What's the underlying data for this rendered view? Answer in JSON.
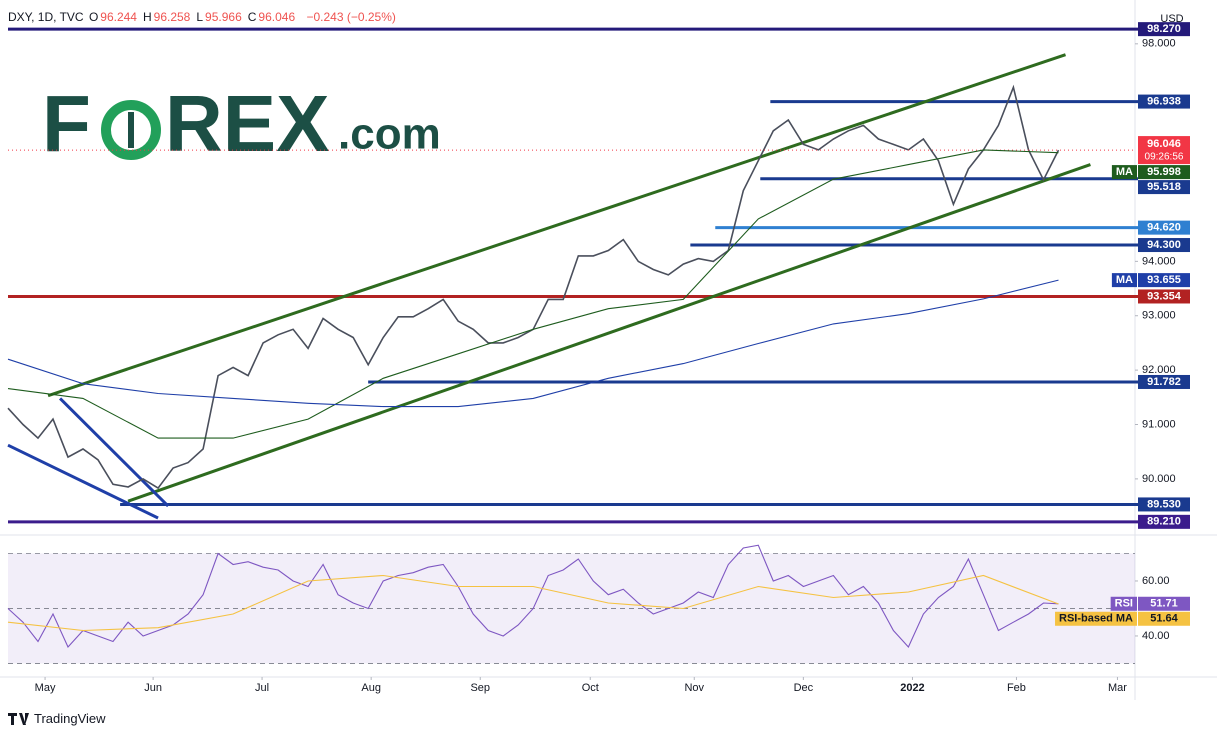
{
  "header": {
    "symbol": "DXY, 1D, TVC",
    "ohlc": [
      {
        "key": "O",
        "value": 96.244
      },
      {
        "key": "H",
        "value": 96.258
      },
      {
        "key": "L",
        "value": 95.966
      },
      {
        "key": "C",
        "value": 96.046
      }
    ],
    "change": "−0.243 (−0.25%)"
  },
  "logo": {
    "left": "F",
    "right": "REX",
    "suffix": ".com"
  },
  "footer": "TradingView",
  "chart_data": [
    {
      "type": "line",
      "currency": "USD",
      "timer": "09:26:56",
      "xlim": [
        0,
        75.1
      ],
      "ylim": [
        89.06,
        98.53
      ],
      "yticks": [
        {
          "value": 90,
          "label": "90.000"
        },
        {
          "value": 91,
          "label": "91.000"
        },
        {
          "value": 92,
          "label": "92.000"
        },
        {
          "value": 93,
          "label": "93.000"
        },
        {
          "value": 94,
          "label": "94.000"
        },
        {
          "value": 98,
          "label": "98.000"
        }
      ],
      "series": [
        {
          "color": "#4a4f5c",
          "values": [
            91.3,
            91.0,
            90.75,
            91.1,
            90.4,
            90.55,
            90.35,
            89.9,
            89.85,
            90.0,
            89.83,
            90.2,
            90.3,
            90.55,
            91.9,
            92.05,
            91.9,
            92.5,
            92.65,
            92.75,
            92.4,
            92.95,
            92.75,
            92.6,
            92.1,
            92.6,
            92.98,
            92.98,
            93.13,
            93.3,
            92.9,
            92.75,
            92.5,
            92.5,
            92.6,
            92.75,
            93.3,
            93.3,
            94.1,
            94.1,
            94.2,
            94.4,
            94.0,
            93.85,
            93.75,
            93.95,
            94.05,
            94.0,
            94.2,
            95.3,
            95.85,
            96.4,
            96.6,
            96.15,
            96.05,
            96.25,
            96.4,
            96.5,
            96.25,
            96.15,
            96.05,
            96.25,
            95.85,
            95.05,
            95.7,
            96.05,
            96.5,
            97.2,
            96.05,
            95.5,
            96.046
          ]
        },
        {
          "name": "MA",
          "color": "#1e5c1e",
          "x": [
            0,
            5,
            10,
            15,
            20,
            25,
            30,
            35,
            40,
            45,
            50,
            55,
            60,
            65,
            70
          ],
          "values": [
            91.66,
            91.48,
            90.75,
            90.75,
            91.1,
            91.85,
            92.3,
            92.75,
            93.13,
            93.3,
            94.78,
            95.51,
            95.78,
            96.05,
            95.998
          ]
        },
        {
          "name": "MA",
          "color": "#1f3fa8",
          "x": [
            0,
            5,
            10,
            15,
            20,
            25,
            30,
            35,
            40,
            45,
            50,
            55,
            60,
            65,
            70
          ],
          "values": [
            92.2,
            91.75,
            91.57,
            91.48,
            91.39,
            91.33,
            91.33,
            91.48,
            91.85,
            92.12,
            92.49,
            92.85,
            93.04,
            93.31,
            93.655
          ]
        }
      ],
      "last_color": "#f23645",
      "levels": [
        {
          "value": 98.27,
          "label": "98.270",
          "color": "#241a7a",
          "x_start": 0
        },
        {
          "value": 96.938,
          "label": "96.938",
          "color": "#1a3a8f",
          "x_start": 50.8
        },
        {
          "value": 95.518,
          "label": "95.518",
          "color": "#1a3a8f",
          "x_start": 50.13
        },
        {
          "value": 94.62,
          "label": "94.620",
          "color": "#2f80d1",
          "x_start": 47.13
        },
        {
          "value": 94.3,
          "label": "94.300",
          "color": "#1a3a8f",
          "x_start": 45.47
        },
        {
          "value": 93.354,
          "label": "93.354",
          "color": "#b22222",
          "x_start": 0
        },
        {
          "value": 91.782,
          "label": "91.782",
          "color": "#1a3a8f",
          "x_start": 24
        },
        {
          "value": 89.53,
          "label": "89.530",
          "color": "#1a3a8f",
          "x_start": 7.47
        },
        {
          "value": 89.21,
          "label": "89.210",
          "color": "#3b1c8c",
          "x_start": 0
        }
      ],
      "trendlines": [
        {
          "color": "#2e6b1f",
          "x": [
            2.67,
            70.47
          ],
          "values": [
            91.53,
            97.8
          ]
        },
        {
          "color": "#2e6b1f",
          "x": [
            8,
            72.13
          ],
          "values": [
            89.59,
            95.78
          ]
        },
        {
          "color": "#1f3fa8",
          "x": [
            0,
            10
          ],
          "values": [
            90.62,
            89.28
          ]
        },
        {
          "color": "#1f3fa8",
          "x": [
            3.47,
            10.67
          ],
          "values": [
            91.48,
            89.5
          ]
        }
      ]
    },
    {
      "type": "line",
      "xlim": [
        0,
        75.1
      ],
      "ylim": [
        25.8,
        74.9
      ],
      "yticks": [
        {
          "value": 40,
          "label": "40.00"
        },
        {
          "value": 60,
          "label": "60.00"
        }
      ],
      "bands": [
        70,
        50,
        30
      ],
      "xticks": [
        {
          "value": 2.47,
          "label": "May"
        },
        {
          "value": 9.67,
          "label": "Jun"
        },
        {
          "value": 16.93,
          "label": "Jul"
        },
        {
          "value": 24.2,
          "label": "Aug"
        },
        {
          "value": 31.47,
          "label": "Sep"
        },
        {
          "value": 38.8,
          "label": "Oct"
        },
        {
          "value": 45.73,
          "label": "Nov"
        },
        {
          "value": 53,
          "label": "Dec"
        },
        {
          "value": 60.27,
          "label": "2022"
        },
        {
          "value": 67.2,
          "label": "Feb"
        },
        {
          "value": 73.93,
          "label": "Mar"
        }
      ],
      "series": [
        {
          "name": "RSI",
          "color": "#7e57c2",
          "values": [
            50,
            45,
            38,
            48,
            36,
            42,
            40,
            38,
            45,
            40,
            42,
            44,
            48,
            55,
            70,
            66,
            67,
            65,
            64,
            60,
            58,
            66,
            55,
            52,
            50,
            60,
            62,
            63,
            65,
            66,
            58,
            48,
            42,
            40,
            44,
            50,
            62,
            64,
            68,
            60,
            55,
            57,
            52,
            48,
            50,
            52,
            56,
            54,
            66,
            72,
            73,
            60,
            62,
            58,
            60,
            62,
            55,
            58,
            52,
            42,
            36,
            48,
            54,
            58,
            68,
            55,
            42,
            45,
            48,
            52,
            51.71
          ]
        },
        {
          "name": "RSI-based MA",
          "color": "#f5c242",
          "x": [
            0,
            5,
            10,
            15,
            20,
            25,
            30,
            35,
            40,
            45,
            50,
            55,
            60,
            65,
            70
          ],
          "values": [
            45,
            42,
            43,
            48,
            60,
            62,
            58,
            58,
            52,
            50,
            58,
            54,
            56,
            62,
            51.64
          ]
        }
      ]
    }
  ]
}
